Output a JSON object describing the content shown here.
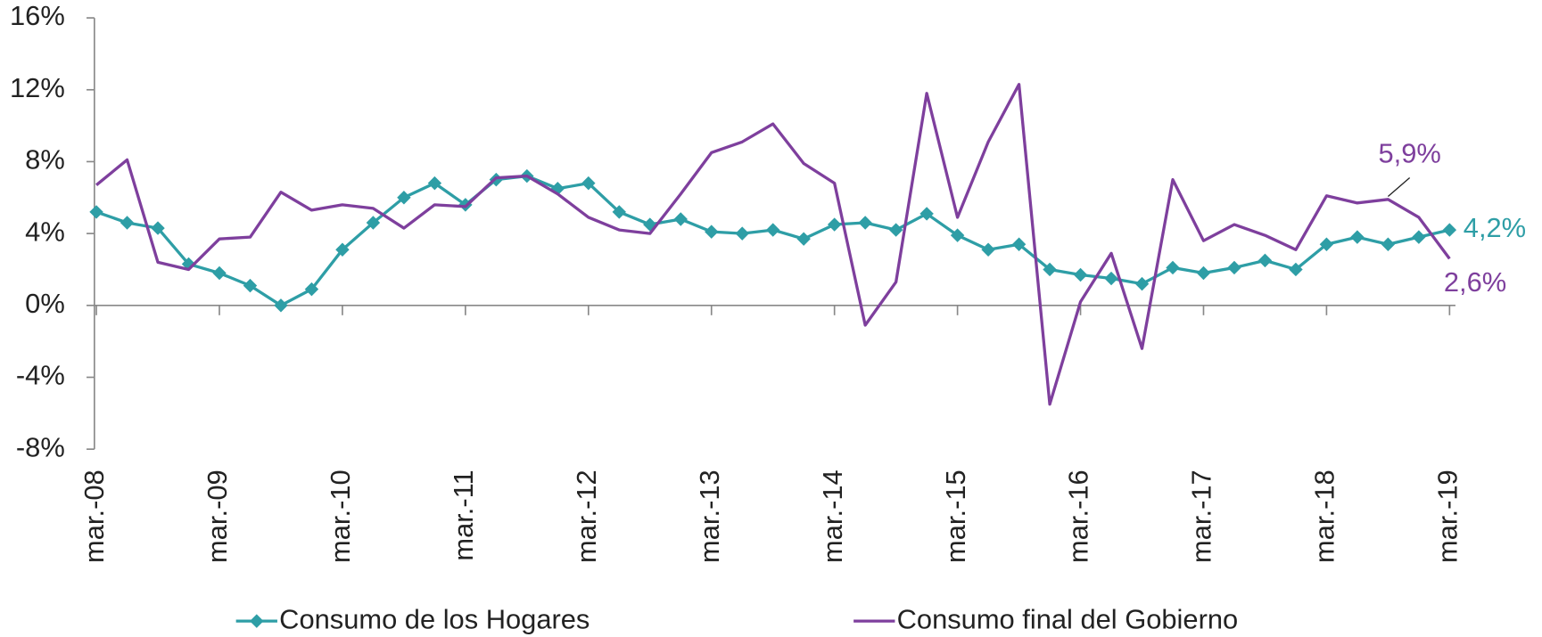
{
  "chart_data": {
    "type": "line",
    "categories": [
      "mar.-08",
      null,
      null,
      null,
      "mar.-09",
      null,
      null,
      null,
      "mar.-10",
      null,
      null,
      null,
      "mar.-11",
      null,
      null,
      null,
      "mar.-12",
      null,
      null,
      null,
      "mar.-13",
      null,
      null,
      null,
      "mar.-14",
      null,
      null,
      null,
      "mar.-15",
      null,
      null,
      null,
      "mar.-16",
      null,
      null,
      null,
      "mar.-17",
      null,
      null,
      null,
      "mar.-18",
      null,
      null,
      null,
      "mar.-19"
    ],
    "series": [
      {
        "name": "Consumo de los Hogares",
        "color": "#2e9ea6",
        "marker": "diamond",
        "values": [
          5.2,
          4.6,
          4.3,
          2.3,
          1.8,
          1.1,
          0.0,
          0.9,
          3.1,
          4.6,
          6.0,
          6.8,
          5.6,
          7.0,
          7.2,
          6.5,
          6.8,
          5.2,
          4.5,
          4.8,
          4.1,
          4.0,
          4.2,
          3.7,
          4.5,
          4.6,
          4.2,
          5.1,
          3.9,
          3.1,
          3.4,
          2.0,
          1.7,
          1.5,
          1.2,
          2.1,
          1.8,
          2.1,
          2.5,
          2.0,
          3.4,
          3.8,
          3.4,
          3.8,
          4.2
        ],
        "value_labels": [
          null,
          null,
          null,
          null,
          null,
          null,
          null,
          null,
          null,
          null,
          null,
          null,
          null,
          null,
          null,
          null,
          null,
          null,
          null,
          null,
          null,
          null,
          null,
          null,
          null,
          null,
          null,
          null,
          null,
          null,
          null,
          null,
          null,
          null,
          null,
          null,
          null,
          null,
          null,
          null,
          null,
          null,
          null,
          null,
          "4,2%"
        ]
      },
      {
        "name": "Consumo final del Gobierno",
        "color": "#7e3f9d",
        "marker": "none",
        "values": [
          6.7,
          8.1,
          2.4,
          2.0,
          3.7,
          3.8,
          6.3,
          5.3,
          5.6,
          5.4,
          4.3,
          5.6,
          5.5,
          7.1,
          7.2,
          6.2,
          4.9,
          4.2,
          4.0,
          6.2,
          8.5,
          9.1,
          10.1,
          7.9,
          6.8,
          -1.1,
          1.3,
          11.8,
          4.9,
          9.1,
          12.3,
          -5.5,
          0.2,
          2.9,
          -2.4,
          7.0,
          3.6,
          4.5,
          3.9,
          3.1,
          6.1,
          5.7,
          5.9,
          4.9,
          2.6
        ],
        "value_labels": [
          null,
          null,
          null,
          null,
          null,
          null,
          null,
          null,
          null,
          null,
          null,
          null,
          null,
          null,
          null,
          null,
          null,
          null,
          null,
          null,
          null,
          null,
          null,
          null,
          null,
          null,
          null,
          null,
          null,
          null,
          null,
          null,
          null,
          null,
          null,
          null,
          null,
          null,
          null,
          null,
          null,
          null,
          "5,9%",
          null,
          "2,6%"
        ]
      }
    ],
    "ylim": [
      -8,
      16
    ],
    "yticks": [
      {
        "value": -8,
        "label": "-8%"
      },
      {
        "value": -4,
        "label": "-4%"
      },
      {
        "value": 0,
        "label": "0%"
      },
      {
        "value": 4,
        "label": "4%"
      },
      {
        "value": 8,
        "label": "8%"
      },
      {
        "value": 12,
        "label": "12%"
      },
      {
        "value": 16,
        "label": "16%"
      }
    ],
    "legend": "bottom",
    "grid": false
  }
}
